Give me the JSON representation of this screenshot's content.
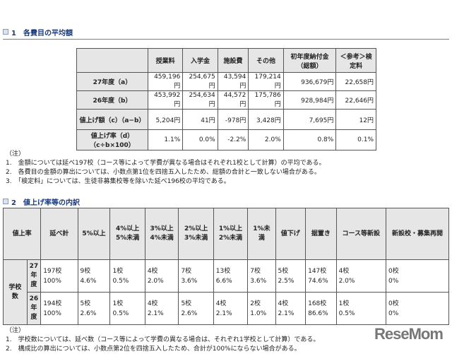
{
  "section1": {
    "title": "1　各費目の平均額",
    "headers": [
      "",
      "授業料",
      "入学金",
      "施設費",
      "その他",
      "初年度納付金（総額）",
      "＜参考＞検定料"
    ],
    "rows": [
      {
        "label": "27年度（a）",
        "values": [
          "459,196円",
          "254,675円",
          "43,594円",
          "179,214円",
          "936,679円",
          "22,658円"
        ]
      },
      {
        "label": "26年度（b）",
        "values": [
          "453,992円",
          "254,634円",
          "44,572円",
          "175,786円",
          "928,984円",
          "22,646円"
        ]
      },
      {
        "label": "値上げ額（c）（a−b）",
        "values": [
          "5,204円",
          "41円",
          "-978円",
          "3,428円",
          "7,695円",
          "12円"
        ]
      },
      {
        "label": "値上げ率（d）（c÷b×100）",
        "values": [
          "1.1%",
          "0.0%",
          "-2.2%",
          "2.0%",
          "0.8%",
          "0.1%"
        ]
      }
    ],
    "notes": [
      "（注）",
      "1.　金額については延べ197校（コース等によって学費が異なる場合はそれぞれ1校として計算）の平均である。",
      "2.　各費目の金額の算出については、小数点第1位を四捨五入したため、総額の合計と一致しない場合がある。",
      "3.　「検定料」については、生徒非募集校等を除いた延べ196校の平均である。"
    ]
  },
  "section2": {
    "title": "2　値上げ率等の内訳",
    "headers": [
      "値上率",
      "延べ計",
      "5%以上",
      "4%以上5%未満",
      "3%以上4%未満",
      "2%以上3%未満",
      "1%以上2%未満",
      "1%未満",
      "値下げ",
      "据置き",
      "コース等新設",
      "新設校・募集再開"
    ],
    "group_label": "学校数",
    "rows": [
      {
        "label": "27年度",
        "counts": [
          "197校",
          "9校",
          "1校",
          "4校",
          "7校",
          "13校",
          "7校",
          "5校",
          "147校",
          "4校",
          "0校"
        ],
        "pcts": [
          "100%",
          "4.6%",
          "0.5%",
          "2.0%",
          "3.6%",
          "6.6%",
          "3.6%",
          "2.5%",
          "74.6%",
          "2.0%",
          "0%"
        ]
      },
      {
        "label": "26年度",
        "counts": [
          "194校",
          "5校",
          "1校",
          "4校",
          "5校",
          "4校",
          "2校",
          "4校",
          "168校",
          "1校",
          "0校"
        ],
        "pcts": [
          "100%",
          "2.6%",
          "0.5%",
          "2.1%",
          "2.6%",
          "2.1%",
          "1.0%",
          "2.1%",
          "86.6%",
          "0.5%",
          "0%"
        ]
      }
    ],
    "notes": [
      "（注）",
      "1.　学校数については、延べ数（コース等によって学費の異なる場合は、それぞれ1学校として計算）である。",
      "2.　構成比の算出については、小数点第2位を四捨五入したため、合計が100%にならない場合がある。"
    ]
  },
  "logo": "ReseMom"
}
